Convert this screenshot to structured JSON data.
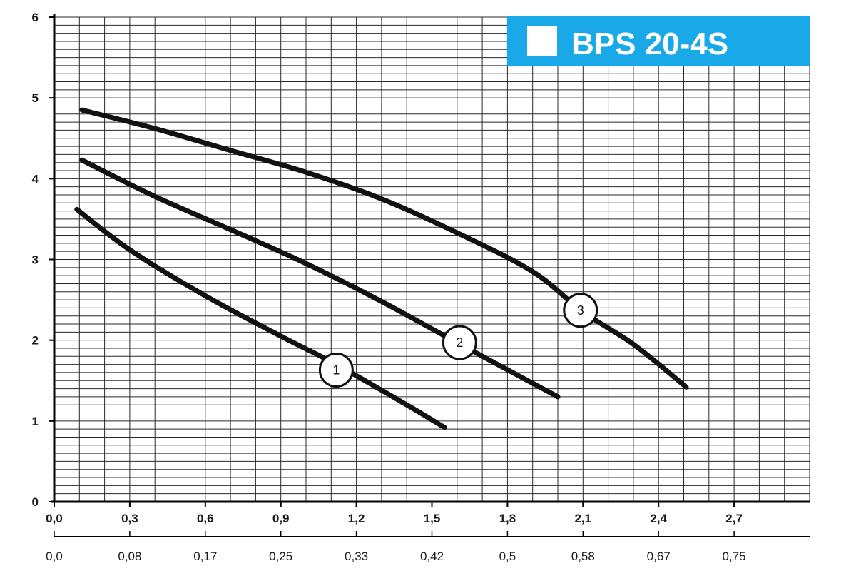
{
  "chart_data": {
    "type": "line",
    "title": "BPS 20-4S",
    "title_bg_color": "#1aa9e8",
    "xlim": [
      0,
      3.0
    ],
    "ylim": [
      0,
      6
    ],
    "x_ticks": [
      "0,0",
      "0,3",
      "0,6",
      "0,9",
      "1,2",
      "1,5",
      "1,8",
      "2,1",
      "2,4",
      "2,7"
    ],
    "x_tick_values": [
      0,
      0.3,
      0.6,
      0.9,
      1.2,
      1.5,
      1.8,
      2.1,
      2.4,
      2.7
    ],
    "x2_ticks": [
      "0,0",
      "0,08",
      "0,17",
      "0,25",
      "0,33",
      "0,42",
      "0,5",
      "0,58",
      "0,67",
      "0,75"
    ],
    "y_ticks": [
      "0",
      "1",
      "2",
      "3",
      "4",
      "5",
      "6"
    ],
    "y_tick_values": [
      0,
      1,
      2,
      3,
      4,
      5,
      6
    ],
    "grid": true,
    "line_color": "#111111",
    "series": [
      {
        "name": "1",
        "x": [
          0.09,
          0.3,
          0.6,
          0.9,
          1.12,
          1.4,
          1.55
        ],
        "y": [
          3.62,
          3.12,
          2.55,
          2.05,
          1.7,
          1.2,
          0.92
        ],
        "label_at": [
          1.12,
          1.63
        ]
      },
      {
        "name": "2",
        "x": [
          0.11,
          0.4,
          0.7,
          1.0,
          1.3,
          1.6,
          2.0
        ],
        "y": [
          4.23,
          3.78,
          3.37,
          2.95,
          2.48,
          1.97,
          1.3
        ],
        "label_at": [
          1.61,
          1.97
        ]
      },
      {
        "name": "3",
        "x": [
          0.11,
          0.4,
          0.7,
          1.0,
          1.3,
          1.6,
          1.9,
          2.1,
          2.3,
          2.51
        ],
        "y": [
          4.85,
          4.62,
          4.35,
          4.08,
          3.75,
          3.33,
          2.85,
          2.35,
          1.95,
          1.42
        ],
        "label_at": [
          2.09,
          2.37
        ]
      }
    ]
  }
}
